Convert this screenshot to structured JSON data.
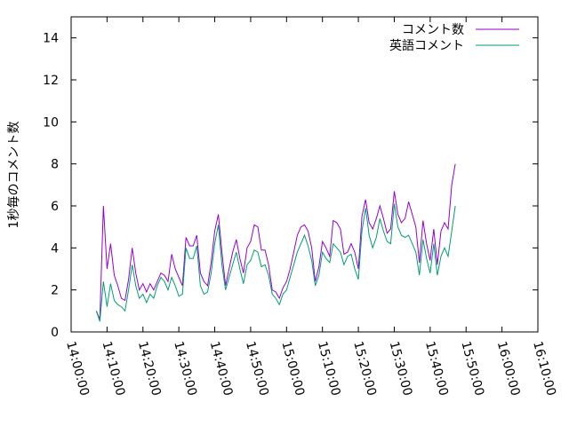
{
  "chart_data": {
    "type": "line",
    "ylabel": "1秒毎のコメント数",
    "xlabel": "",
    "ylim": [
      0,
      15
    ],
    "yticks": [
      0,
      2,
      4,
      6,
      8,
      10,
      12,
      14
    ],
    "xlim": [
      "14:00:00",
      "16:10:00"
    ],
    "xticks": [
      "14:00:00",
      "14:10:00",
      "14:20:00",
      "14:30:00",
      "14:40:00",
      "14:50:00",
      "15:00:00",
      "15:10:00",
      "15:20:00",
      "15:30:00",
      "15:40:00",
      "15:50:00",
      "16:00:00",
      "16:10:00"
    ],
    "grid": false,
    "legend_position": "top-right",
    "series": [
      {
        "name": "コメント数",
        "color": "#9400d3",
        "points": [
          [
            "14:07:00",
            1.0
          ],
          [
            "14:08:00",
            0.6
          ],
          [
            "14:09:00",
            6.0
          ],
          [
            "14:10:00",
            3.0
          ],
          [
            "14:11:00",
            4.2
          ],
          [
            "14:12:00",
            2.7
          ],
          [
            "14:13:00",
            2.2
          ],
          [
            "14:14:00",
            1.6
          ],
          [
            "14:15:00",
            1.5
          ],
          [
            "14:16:00",
            2.5
          ],
          [
            "14:17:00",
            4.0
          ],
          [
            "14:18:00",
            2.8
          ],
          [
            "14:19:00",
            2.0
          ],
          [
            "14:20:00",
            2.3
          ],
          [
            "14:21:00",
            1.9
          ],
          [
            "14:22:00",
            2.3
          ],
          [
            "14:23:00",
            2.0
          ],
          [
            "14:24:00",
            2.4
          ],
          [
            "14:25:00",
            2.8
          ],
          [
            "14:26:00",
            2.7
          ],
          [
            "14:27:00",
            2.4
          ],
          [
            "14:28:00",
            3.7
          ],
          [
            "14:29:00",
            3.0
          ],
          [
            "14:30:00",
            2.6
          ],
          [
            "14:31:00",
            2.2
          ],
          [
            "14:32:00",
            4.5
          ],
          [
            "14:33:00",
            4.1
          ],
          [
            "14:34:00",
            4.1
          ],
          [
            "14:35:00",
            4.6
          ],
          [
            "14:36:00",
            2.8
          ],
          [
            "14:37:00",
            2.4
          ],
          [
            "14:38:00",
            2.2
          ],
          [
            "14:39:00",
            3.3
          ],
          [
            "14:40:00",
            4.8
          ],
          [
            "14:41:00",
            5.6
          ],
          [
            "14:42:00",
            3.8
          ],
          [
            "14:43:00",
            2.2
          ],
          [
            "14:44:00",
            3.0
          ],
          [
            "14:45:00",
            3.8
          ],
          [
            "14:46:00",
            4.4
          ],
          [
            "14:47:00",
            3.5
          ],
          [
            "14:48:00",
            2.8
          ],
          [
            "14:49:00",
            4.0
          ],
          [
            "14:50:00",
            4.3
          ],
          [
            "14:51:00",
            5.1
          ],
          [
            "14:52:00",
            5.0
          ],
          [
            "14:53:00",
            3.9
          ],
          [
            "14:54:00",
            3.9
          ],
          [
            "14:55:00",
            3.2
          ],
          [
            "14:56:00",
            2.0
          ],
          [
            "14:57:00",
            1.9
          ],
          [
            "14:58:00",
            1.6
          ],
          [
            "14:59:00",
            2.1
          ],
          [
            "15:00:00",
            2.4
          ],
          [
            "15:01:00",
            3.0
          ],
          [
            "15:02:00",
            3.8
          ],
          [
            "15:03:00",
            4.6
          ],
          [
            "15:04:00",
            5.0
          ],
          [
            "15:05:00",
            5.1
          ],
          [
            "15:06:00",
            4.8
          ],
          [
            "15:07:00",
            4.0
          ],
          [
            "15:08:00",
            2.4
          ],
          [
            "15:09:00",
            3.1
          ],
          [
            "15:10:00",
            4.3
          ],
          [
            "15:11:00",
            4.0
          ],
          [
            "15:12:00",
            3.6
          ],
          [
            "15:13:00",
            5.3
          ],
          [
            "15:14:00",
            5.2
          ],
          [
            "15:15:00",
            4.9
          ],
          [
            "15:16:00",
            3.7
          ],
          [
            "15:17:00",
            3.8
          ],
          [
            "15:18:00",
            4.2
          ],
          [
            "15:19:00",
            3.8
          ],
          [
            "15:20:00",
            3.0
          ],
          [
            "15:21:00",
            5.5
          ],
          [
            "15:22:00",
            6.3
          ],
          [
            "15:23:00",
            5.2
          ],
          [
            "15:24:00",
            4.9
          ],
          [
            "15:25:00",
            5.4
          ],
          [
            "15:26:00",
            6.0
          ],
          [
            "15:27:00",
            5.4
          ],
          [
            "15:28:00",
            4.7
          ],
          [
            "15:29:00",
            4.9
          ],
          [
            "15:30:00",
            6.7
          ],
          [
            "15:31:00",
            5.6
          ],
          [
            "15:32:00",
            5.2
          ],
          [
            "15:33:00",
            5.4
          ],
          [
            "15:34:00",
            6.2
          ],
          [
            "15:35:00",
            5.6
          ],
          [
            "15:36:00",
            5.0
          ],
          [
            "15:37:00",
            3.3
          ],
          [
            "15:38:00",
            5.3
          ],
          [
            "15:39:00",
            4.2
          ],
          [
            "15:40:00",
            3.4
          ],
          [
            "15:41:00",
            4.9
          ],
          [
            "15:42:00",
            3.2
          ],
          [
            "15:43:00",
            4.8
          ],
          [
            "15:44:00",
            5.2
          ],
          [
            "15:45:00",
            4.9
          ],
          [
            "15:46:00",
            7.0
          ],
          [
            "15:47:00",
            8.0
          ]
        ]
      },
      {
        "name": "英語コメント",
        "color": "#009e73",
        "points": [
          [
            "14:07:00",
            1.0
          ],
          [
            "14:08:00",
            0.5
          ],
          [
            "14:09:00",
            2.4
          ],
          [
            "14:10:00",
            1.2
          ],
          [
            "14:11:00",
            2.3
          ],
          [
            "14:12:00",
            1.5
          ],
          [
            "14:13:00",
            1.3
          ],
          [
            "14:14:00",
            1.2
          ],
          [
            "14:15:00",
            1.0
          ],
          [
            "14:16:00",
            2.0
          ],
          [
            "14:17:00",
            3.2
          ],
          [
            "14:18:00",
            2.2
          ],
          [
            "14:19:00",
            1.6
          ],
          [
            "14:20:00",
            1.8
          ],
          [
            "14:21:00",
            1.4
          ],
          [
            "14:22:00",
            1.8
          ],
          [
            "14:23:00",
            1.6
          ],
          [
            "14:24:00",
            2.2
          ],
          [
            "14:25:00",
            2.6
          ],
          [
            "14:26:00",
            2.4
          ],
          [
            "14:27:00",
            2.0
          ],
          [
            "14:28:00",
            2.6
          ],
          [
            "14:29:00",
            2.2
          ],
          [
            "14:30:00",
            1.7
          ],
          [
            "14:31:00",
            1.8
          ],
          [
            "14:32:00",
            4.0
          ],
          [
            "14:33:00",
            3.5
          ],
          [
            "14:34:00",
            3.5
          ],
          [
            "14:35:00",
            4.1
          ],
          [
            "14:36:00",
            2.2
          ],
          [
            "14:37:00",
            1.8
          ],
          [
            "14:38:00",
            1.9
          ],
          [
            "14:39:00",
            2.8
          ],
          [
            "14:40:00",
            4.2
          ],
          [
            "14:41:00",
            5.1
          ],
          [
            "14:42:00",
            3.2
          ],
          [
            "14:43:00",
            2.0
          ],
          [
            "14:44:00",
            2.6
          ],
          [
            "14:45:00",
            3.2
          ],
          [
            "14:46:00",
            3.8
          ],
          [
            "14:47:00",
            3.0
          ],
          [
            "14:48:00",
            2.3
          ],
          [
            "14:49:00",
            3.2
          ],
          [
            "14:50:00",
            3.4
          ],
          [
            "14:51:00",
            3.9
          ],
          [
            "14:52:00",
            3.8
          ],
          [
            "14:53:00",
            3.1
          ],
          [
            "14:54:00",
            3.2
          ],
          [
            "14:55:00",
            2.7
          ],
          [
            "14:56:00",
            1.8
          ],
          [
            "14:57:00",
            1.6
          ],
          [
            "14:58:00",
            1.3
          ],
          [
            "14:59:00",
            1.8
          ],
          [
            "15:00:00",
            2.0
          ],
          [
            "15:01:00",
            2.6
          ],
          [
            "15:02:00",
            3.2
          ],
          [
            "15:03:00",
            3.8
          ],
          [
            "15:04:00",
            4.2
          ],
          [
            "15:05:00",
            4.6
          ],
          [
            "15:06:00",
            4.1
          ],
          [
            "15:07:00",
            3.4
          ],
          [
            "15:08:00",
            2.2
          ],
          [
            "15:09:00",
            2.7
          ],
          [
            "15:10:00",
            3.8
          ],
          [
            "15:11:00",
            3.5
          ],
          [
            "15:12:00",
            3.3
          ],
          [
            "15:13:00",
            4.2
          ],
          [
            "15:14:00",
            4.0
          ],
          [
            "15:15:00",
            3.8
          ],
          [
            "15:16:00",
            3.2
          ],
          [
            "15:17:00",
            3.6
          ],
          [
            "15:18:00",
            3.7
          ],
          [
            "15:19:00",
            3.0
          ],
          [
            "15:20:00",
            2.5
          ],
          [
            "15:21:00",
            4.8
          ],
          [
            "15:22:00",
            5.9
          ],
          [
            "15:23:00",
            4.6
          ],
          [
            "15:24:00",
            4.0
          ],
          [
            "15:25:00",
            4.5
          ],
          [
            "15:26:00",
            5.4
          ],
          [
            "15:27:00",
            4.8
          ],
          [
            "15:28:00",
            4.3
          ],
          [
            "15:29:00",
            4.2
          ],
          [
            "15:30:00",
            6.1
          ],
          [
            "15:31:00",
            5.0
          ],
          [
            "15:32:00",
            4.6
          ],
          [
            "15:33:00",
            4.5
          ],
          [
            "15:34:00",
            4.6
          ],
          [
            "15:35:00",
            4.2
          ],
          [
            "15:36:00",
            3.8
          ],
          [
            "15:37:00",
            2.7
          ],
          [
            "15:38:00",
            4.4
          ],
          [
            "15:39:00",
            3.5
          ],
          [
            "15:40:00",
            2.8
          ],
          [
            "15:41:00",
            4.2
          ],
          [
            "15:42:00",
            2.7
          ],
          [
            "15:43:00",
            3.6
          ],
          [
            "15:44:00",
            4.0
          ],
          [
            "15:45:00",
            3.6
          ],
          [
            "15:46:00",
            4.8
          ],
          [
            "15:47:00",
            6.0
          ]
        ]
      }
    ]
  }
}
